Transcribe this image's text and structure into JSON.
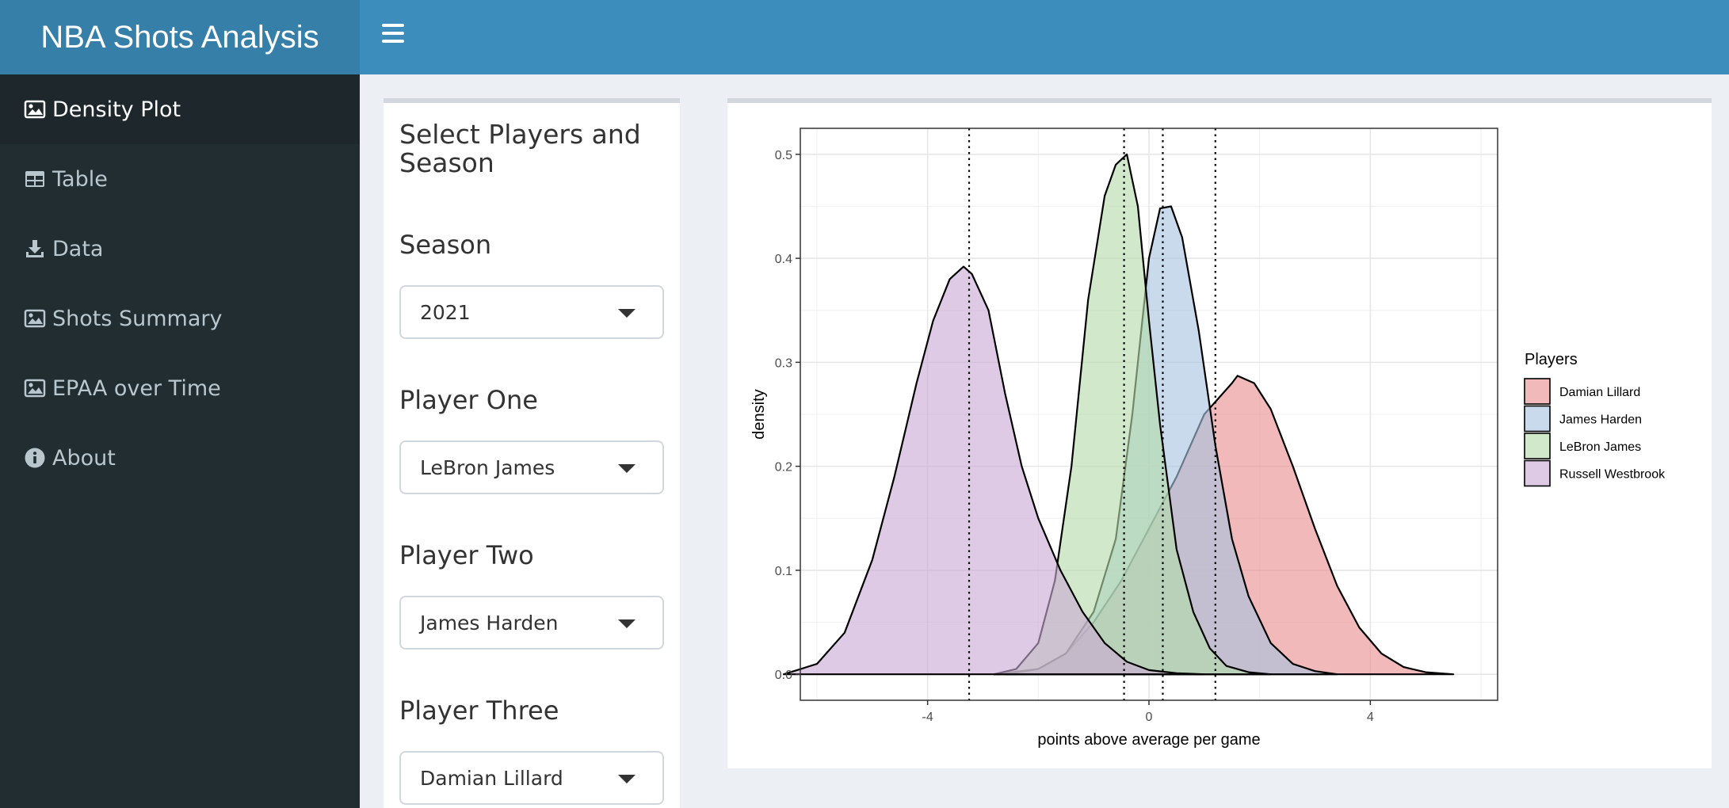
{
  "header": {
    "title": "NBA Shots Analysis"
  },
  "sidebar": {
    "items": [
      {
        "label": "Density Plot",
        "icon": "image-icon"
      },
      {
        "label": "Table",
        "icon": "table-icon"
      },
      {
        "label": "Data",
        "icon": "download-icon"
      },
      {
        "label": "Shots Summary",
        "icon": "image-icon"
      },
      {
        "label": "EPAA over Time",
        "icon": "image-icon"
      },
      {
        "label": "About",
        "icon": "info-icon"
      }
    ]
  },
  "inputs": {
    "title": "Select Players and Season",
    "season": {
      "label": "Season",
      "value": "2021"
    },
    "player_one": {
      "label": "Player One",
      "value": "LeBron James"
    },
    "player_two": {
      "label": "Player Two",
      "value": "James Harden"
    },
    "player_three": {
      "label": "Player Three",
      "value": "Damian Lillard"
    }
  },
  "colors": {
    "header": "#3c8dbc",
    "logo": "#367fa9",
    "sidebar": "#222d32",
    "sidebar_active": "#1e282c"
  },
  "chart_data": {
    "type": "area",
    "xlabel": "points above average per game",
    "ylabel": "density",
    "xlim": [
      -6.3,
      6.3
    ],
    "ylim": [
      -0.025,
      0.525
    ],
    "xticks": [
      -4,
      0,
      4
    ],
    "xtick_labels": [
      "-4",
      "0",
      "4"
    ],
    "yticks": [
      0.0,
      0.1,
      0.2,
      0.3,
      0.4,
      0.5
    ],
    "ytick_labels": [
      "0.0",
      "0.1",
      "0.2",
      "0.3",
      "0.4",
      "0.5"
    ],
    "grid": true,
    "legend": {
      "title": "Players",
      "position": "right"
    },
    "series": [
      {
        "name": "Damian Lillard",
        "color": "#e88e8e",
        "mean": 1.2,
        "x": [
          -2.8,
          -2.0,
          -1.5,
          -1.0,
          -0.5,
          0.0,
          0.5,
          1.0,
          1.5,
          1.6,
          1.9,
          2.2,
          2.6,
          3.0,
          3.4,
          3.8,
          4.2,
          4.6,
          5.0,
          5.5
        ],
        "y": [
          0.0,
          0.005,
          0.02,
          0.05,
          0.09,
          0.14,
          0.19,
          0.25,
          0.28,
          0.287,
          0.28,
          0.255,
          0.2,
          0.14,
          0.085,
          0.045,
          0.02,
          0.007,
          0.002,
          0.0
        ]
      },
      {
        "name": "James Harden",
        "color": "#a6c4e0",
        "mean": 0.25,
        "x": [
          -2.6,
          -2.0,
          -1.5,
          -1.0,
          -0.6,
          -0.3,
          0.0,
          0.2,
          0.4,
          0.6,
          0.9,
          1.2,
          1.5,
          1.8,
          2.2,
          2.6,
          3.0,
          3.4
        ],
        "y": [
          0.0,
          0.005,
          0.02,
          0.06,
          0.13,
          0.25,
          0.4,
          0.448,
          0.45,
          0.42,
          0.33,
          0.22,
          0.13,
          0.075,
          0.03,
          0.01,
          0.003,
          0.0
        ]
      },
      {
        "name": "LeBron James",
        "color": "#b5dba9",
        "mean": -0.45,
        "x": [
          -2.8,
          -2.4,
          -2.0,
          -1.7,
          -1.4,
          -1.1,
          -0.8,
          -0.6,
          -0.4,
          -0.2,
          0.0,
          0.2,
          0.5,
          0.8,
          1.1,
          1.4,
          1.8,
          2.2
        ],
        "y": [
          0.0,
          0.005,
          0.03,
          0.09,
          0.2,
          0.36,
          0.46,
          0.49,
          0.5,
          0.45,
          0.34,
          0.24,
          0.12,
          0.06,
          0.025,
          0.008,
          0.002,
          0.0
        ]
      },
      {
        "name": "Russell Westbrook",
        "color": "#c9a9d4",
        "mean": -3.25,
        "x": [
          -6.6,
          -6.0,
          -5.5,
          -5.0,
          -4.6,
          -4.2,
          -3.9,
          -3.6,
          -3.35,
          -3.2,
          -2.9,
          -2.6,
          -2.3,
          -2.0,
          -1.6,
          -1.2,
          -0.8,
          -0.4,
          0.0,
          0.5,
          1.0
        ],
        "y": [
          0.0,
          0.01,
          0.04,
          0.11,
          0.19,
          0.28,
          0.34,
          0.38,
          0.392,
          0.385,
          0.35,
          0.27,
          0.2,
          0.15,
          0.1,
          0.06,
          0.03,
          0.012,
          0.004,
          0.001,
          0.0
        ]
      }
    ]
  }
}
